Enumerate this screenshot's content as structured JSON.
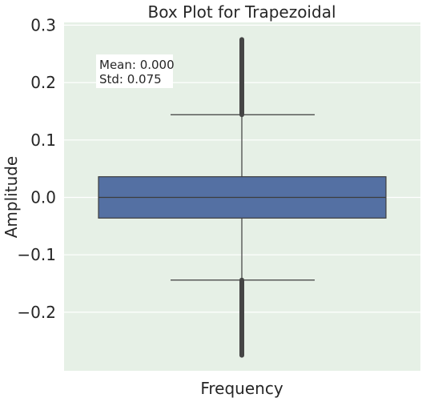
{
  "chart_data": {
    "type": "box",
    "title": "Box Plot for Trapezoidal",
    "xlabel": "Frequency",
    "ylabel": "Amplitude",
    "ylim": [
      -0.3,
      0.3
    ],
    "yticks": [
      0.3,
      0.2,
      0.1,
      0.0,
      -0.1,
      -0.2
    ],
    "ytick_labels": [
      "0.3",
      "0.2",
      "0.1",
      "0.0",
      "−0.1",
      "−0.2"
    ],
    "xticks": [],
    "grid": true,
    "box": {
      "q1": -0.036,
      "median": 0.0,
      "q3": 0.036,
      "whisker_low": -0.144,
      "whisker_high": 0.144,
      "outliers_high_range": [
        0.144,
        0.275
      ],
      "outliers_low_range": [
        -0.275,
        -0.144
      ]
    },
    "annotation": {
      "mean_text": "Mean: 0.000",
      "std_text": "Std: 0.075"
    },
    "colors": {
      "background": "#e6f0e6",
      "box_fill": "#5470a3",
      "line": "#3d3d3d",
      "outlier": "#454545",
      "grid": "#ffffff",
      "annotation_bg": "#ffffff"
    }
  }
}
